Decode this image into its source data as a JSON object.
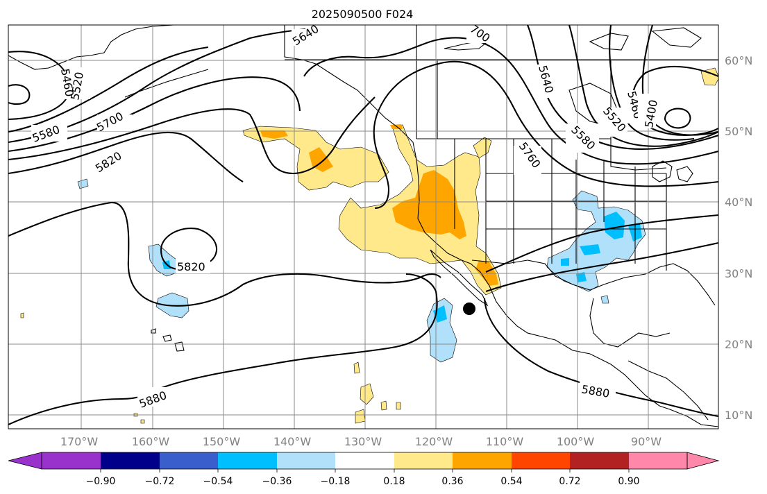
{
  "title": "2025090500 F024",
  "longitude_labels": [
    "170°W",
    "160°W",
    "150°W",
    "140°W",
    "130°W",
    "120°W",
    "110°W",
    "100°W",
    "90°W"
  ],
  "latitude_labels": [
    "60°N",
    "50°N",
    "40°N",
    "30°N",
    "20°N",
    "10°N"
  ],
  "contour_labels": [
    "5460",
    "5520",
    "5580",
    "5640",
    "5700",
    "5760",
    "5820",
    "5820",
    "5880",
    "5880",
    "5640",
    "5580",
    "5520",
    "5460",
    "5400",
    "700"
  ],
  "colorbar": {
    "ticks": [
      "−0.90",
      "−0.72",
      "−0.54",
      "−0.36",
      "−0.18",
      "0.18",
      "0.36",
      "0.54",
      "0.72",
      "0.90"
    ],
    "colors": [
      "#9932cc",
      "#00008b",
      "#3a5fcd",
      "#00bfff",
      "#b0e0fa",
      "#ffffff",
      "#ffe98a",
      "#ffa500",
      "#ff4500",
      "#b22222",
      "#ff88aa"
    ]
  },
  "marker": {
    "label": "black-dot",
    "lon": -115,
    "lat": 25
  }
}
